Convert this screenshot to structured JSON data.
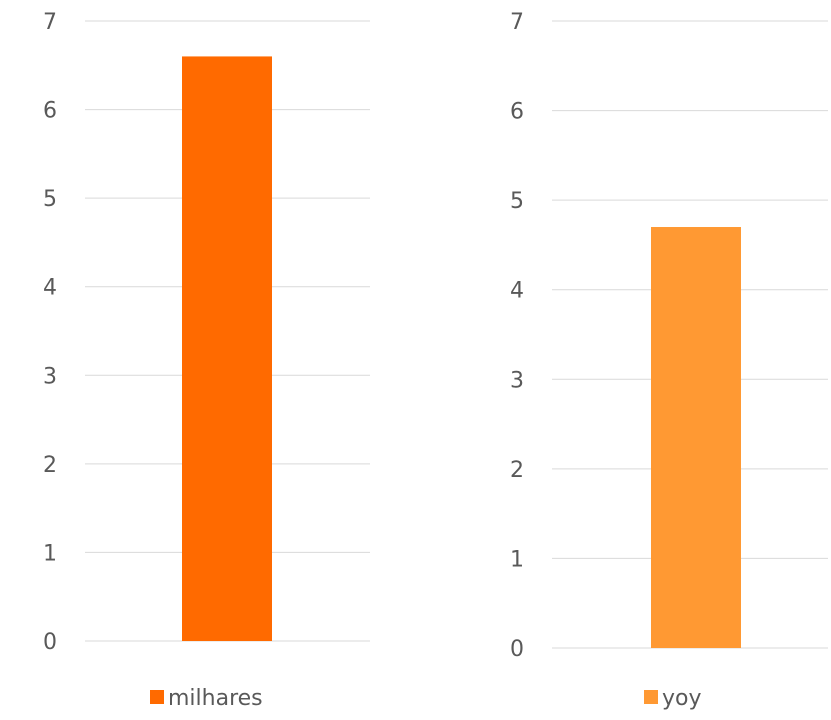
{
  "chart_data": [
    {
      "type": "bar",
      "categories": [
        ""
      ],
      "series": [
        {
          "name": "milhares",
          "values": [
            6.6
          ]
        }
      ],
      "ylim": [
        0,
        7
      ],
      "yticks": [
        0,
        1,
        2,
        3,
        4,
        5,
        6,
        7
      ],
      "grid": true,
      "legend": "bottom",
      "color": "#ff6a00"
    },
    {
      "type": "bar",
      "categories": [
        ""
      ],
      "series": [
        {
          "name": "yoy",
          "values": [
            4.7
          ]
        }
      ],
      "ylim": [
        0,
        7
      ],
      "yticks": [
        0,
        1,
        2,
        3,
        4,
        5,
        6,
        7
      ],
      "grid": true,
      "legend": "bottom",
      "color": "#ff9933"
    }
  ]
}
